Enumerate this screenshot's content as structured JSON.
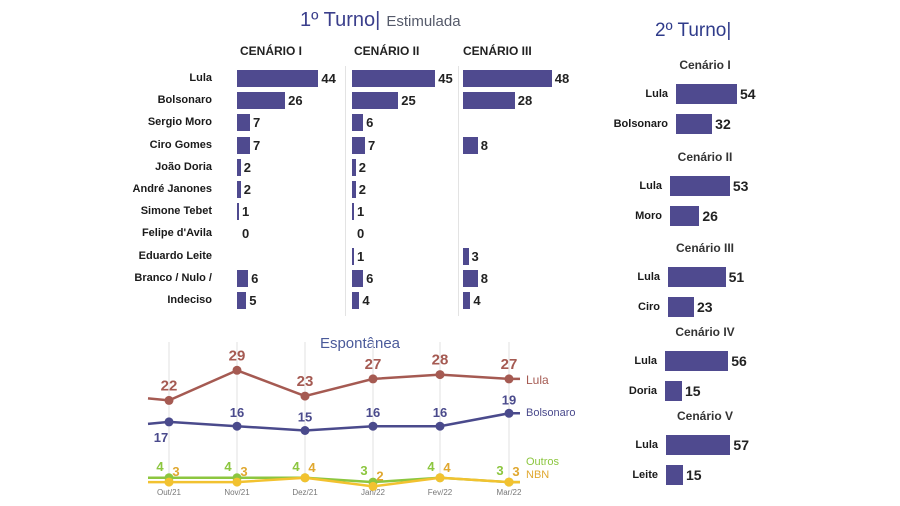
{
  "header": {
    "title": "1º Turno|",
    "subtitle": "Estimulada",
    "title2": "2º Turno|"
  },
  "chart_data": [
    {
      "type": "bar",
      "title": "1º Turno| Estimulada",
      "categories": [
        "Lula",
        "Bolsonaro",
        "Sergio Moro",
        "Ciro Gomes",
        "João Doria",
        "André Janones",
        "Simone Tebet",
        "Felipe d'Avila",
        "Eduardo Leite",
        "Branco / Nulo /",
        "Indeciso"
      ],
      "series": [
        {
          "name": "CENÁRIO I",
          "values": [
            44,
            26,
            7,
            7,
            2,
            2,
            1,
            0,
            null,
            6,
            5
          ]
        },
        {
          "name": "CENÁRIO II",
          "values": [
            45,
            25,
            6,
            7,
            2,
            2,
            1,
            0,
            1,
            6,
            4
          ]
        },
        {
          "name": "CENÁRIO III",
          "values": [
            48,
            28,
            null,
            8,
            null,
            null,
            null,
            null,
            3,
            8,
            4
          ]
        }
      ]
    },
    {
      "type": "bar",
      "title": "2º Turno|",
      "scenarios": [
        {
          "name": "Cenário I",
          "categories": [
            "Lula",
            "Bolsonaro"
          ],
          "values": [
            54,
            32
          ]
        },
        {
          "name": "Cenário II",
          "categories": [
            "Lula",
            "Moro"
          ],
          "values": [
            53,
            26
          ]
        },
        {
          "name": "Cenário III",
          "categories": [
            "Lula",
            "Ciro"
          ],
          "values": [
            51,
            23
          ]
        },
        {
          "name": "Cenário IV",
          "categories": [
            "Lula",
            "Doria"
          ],
          "values": [
            56,
            15
          ]
        },
        {
          "name": "Cenário V",
          "categories": [
            "Lula",
            "Leite"
          ],
          "values": [
            57,
            15
          ]
        }
      ]
    },
    {
      "type": "line",
      "title": "Espontânea",
      "categories": [
        "Out/21",
        "Nov/21",
        "Dez/21",
        "Jan/22",
        "Fev/22",
        "Mar/22"
      ],
      "series": [
        {
          "name": "Lula",
          "color": "#a55a52",
          "values": [
            22,
            29,
            23,
            27,
            28,
            27
          ]
        },
        {
          "name": "Bolsonaro",
          "color": "#4a4a8c",
          "values": [
            17,
            16,
            15,
            16,
            16,
            19
          ]
        },
        {
          "name": "Outros",
          "color": "#8cc63f",
          "values": [
            4,
            4,
            4,
            3,
            4,
            3
          ]
        },
        {
          "name": "NBN",
          "color": "#f2c230",
          "values": [
            3,
            3,
            4,
            2,
            4,
            3
          ]
        }
      ]
    }
  ]
}
